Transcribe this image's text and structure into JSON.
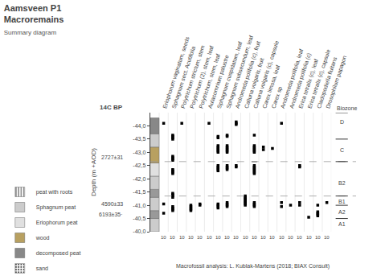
{
  "chart_data": {
    "type": "scatter",
    "title": "Aamsveen P1",
    "subtitle": "Macroremains",
    "subtitle2": "Summary diagram",
    "y_label": "Depth (m +AOD)",
    "categories": [
      "Eriophorum vaginatum, seeds",
      "Sphagnum sect. Acutifolia",
      "Polytrichum strictum, stem",
      "Polytrichum (2), stem, leaf",
      "Polytrichum, stem, leaf",
      "Aulacomnium palustre",
      "Sphagnum cuspidatum, leaf",
      "Sphagnum subsecundum, leaf",
      "Andromeda polifolia (c), fruit",
      "Calluna vulgaris, fruit",
      "Calluna vulgaris (c), capsule",
      "Carex limosa, leaf",
      "Carex sp",
      "Andromeda polifolia, leaf",
      "Andromeda polifolia (c)",
      "Erica tetralix (c), leaf",
      "Erica tetralix (c), capsule",
      "Cladopodiella fluitans",
      "Drosophilum papagon"
    ],
    "category_labels_below": [
      "10",
      "10",
      "10",
      "10",
      "10",
      "10",
      "10",
      "10",
      "10",
      "10",
      "10",
      "10",
      "10",
      "10",
      "10",
      "10",
      "10",
      "10",
      "10"
    ],
    "values": [
      [
        -44.1,
        -41.05,
        -40.7
      ],
      [
        -43.65,
        -43.6,
        -43.55,
        -43.5,
        -42.85,
        -42.8,
        -42.75,
        -42.7,
        -42.35,
        -42.3,
        -42.25,
        -42.2,
        -41.45,
        -41.4,
        -41.35,
        -41.3,
        -40.95,
        -40.9,
        -40.85,
        -40.8
      ],
      [
        -44.1
      ],
      [
        -41.0,
        -40.95,
        -40.9,
        -40.85,
        -40.8
      ],
      [
        -41.05,
        -41.0
      ],
      [
        -44.1
      ],
      [
        -43.6,
        -43.55,
        -43.25,
        -43.2,
        -43.15,
        -43.1,
        -43.05,
        -43.0,
        -42.5,
        -42.45,
        -42.4,
        -42.35,
        -42.3,
        -41.05,
        -41.0,
        -40.95,
        -40.9
      ],
      [
        -43.65,
        -43.6,
        -43.25,
        -43.2,
        -43.15,
        -43.1,
        -43.05,
        -43.0,
        -42.5,
        -42.45,
        -42.4,
        -42.35,
        -41.1,
        -41.05,
        -41.0,
        -40.95
      ],
      [
        -44.15,
        -44.1,
        -44.05,
        -42.5,
        -42.45
      ],
      [
        -41.35,
        -41.3,
        -41.25,
        -41.2,
        -41.15,
        -41.1,
        -41.05,
        -41.0
      ],
      [
        -43.65,
        -43.25,
        -43.2,
        -43.15,
        -43.1,
        -43.05,
        -43.0,
        -42.5,
        -42.45,
        -42.4,
        -42.35,
        -42.3,
        -42.25,
        -42.2,
        -41.1,
        -41.05,
        -41.0,
        -40.95
      ],
      [
        -43.2,
        -43.1
      ],
      [
        -43.15
      ],
      [
        -44.1,
        -41.1,
        -40.95
      ],
      [
        -41.0
      ],
      [
        -42.5,
        -42.45,
        -41.1,
        -41.0
      ],
      [
        -40.55
      ],
      [
        -41.0,
        -40.75,
        -40.7,
        -40.65,
        -40.6
      ],
      [
        -41.1
      ]
    ],
    "color": "#000000",
    "marker": "square",
    "ylim": [
      -40.0,
      -44.5
    ],
    "yticks": [
      {
        "value": -44.0,
        "label": "-44,0"
      },
      {
        "value": -43.5,
        "label": "-43,5"
      },
      {
        "value": -43.0,
        "label": "-43,0"
      },
      {
        "value": -42.5,
        "label": "-42,5"
      },
      {
        "value": -42.0,
        "label": "-42,0"
      },
      {
        "value": -41.5,
        "label": "-41,5"
      },
      {
        "value": -41.0,
        "label": "-41,0"
      },
      {
        "value": -40.5,
        "label": "-40,5"
      },
      {
        "value": -40.0,
        "label": "-40,0"
      }
    ],
    "grid": "x",
    "dashed_lines": [
      -42.65,
      -41.35
    ],
    "radiocarbon_title": "14C BP",
    "radiocarbon_dates": [
      {
        "label": "2727±31",
        "y": -42.8
      },
      {
        "label": "4590±33",
        "y": -41.05
      },
      {
        "label": "6193±35·",
        "y": -40.65
      }
    ],
    "biozone_title": "Biozone",
    "biozones": [
      {
        "label": "D",
        "y": -44.15
      },
      {
        "label": "C",
        "y": -43.1
      },
      {
        "label": "B2",
        "y": -41.85
      },
      {
        "label": "B1",
        "y": -41.15
      },
      {
        "label": "A2",
        "y": -40.75
      },
      {
        "label": "A1",
        "y": -40.3
      }
    ],
    "biozone_boundaries": [
      -43.5,
      -42.65,
      -41.35,
      -41.0,
      -40.5
    ],
    "peat_bands": [
      {
        "y_top": -40.0,
        "y_bot": -40.5,
        "type": "sphagnum"
      },
      {
        "y_top": -40.5,
        "y_bot": -40.8,
        "type": "roots"
      },
      {
        "y_top": -40.8,
        "y_bot": -41.3,
        "type": "sphagnum"
      },
      {
        "y_top": -41.3,
        "y_bot": -41.6,
        "type": "roots"
      },
      {
        "y_top": -41.6,
        "y_bot": -42.1,
        "type": "sphagnum"
      },
      {
        "y_top": -42.1,
        "y_bot": -42.6,
        "type": "eriophorum"
      },
      {
        "y_top": -42.6,
        "y_bot": -43.2,
        "type": "wood"
      },
      {
        "y_top": -43.2,
        "y_bot": -43.7,
        "type": "sphagnum"
      },
      {
        "y_top": -43.7,
        "y_bot": -44.3,
        "type": "decomposed"
      }
    ],
    "peat_colors": {
      "sphagnum": "#cccccc",
      "roots": "#999999",
      "eriophorum": "#e0e0e0",
      "wood": "#b8a060",
      "decomposed": "#888888",
      "sand": "#f0e8b0"
    },
    "peat_legend": [
      {
        "type": "roots",
        "label": "peat with roots"
      },
      {
        "type": "sphagnum",
        "label": "Sphagnum peat"
      },
      {
        "type": "eriophorum",
        "label": "Eriophorum peat"
      },
      {
        "type": "wood",
        "label": "wood"
      },
      {
        "type": "decomposed",
        "label": "decomposed peat"
      },
      {
        "type": "sand",
        "label": "sand"
      }
    ],
    "legend": "bottom",
    "gray_bar": {
      "category": "Calluna vulgaris (c), capsule",
      "y": -42.65,
      "height": 0.05,
      "color": "#aaaaaa"
    },
    "analysis_text": "Macrofossil analysis: L. Kublak-Martens (2018; BIAX Consult)"
  }
}
